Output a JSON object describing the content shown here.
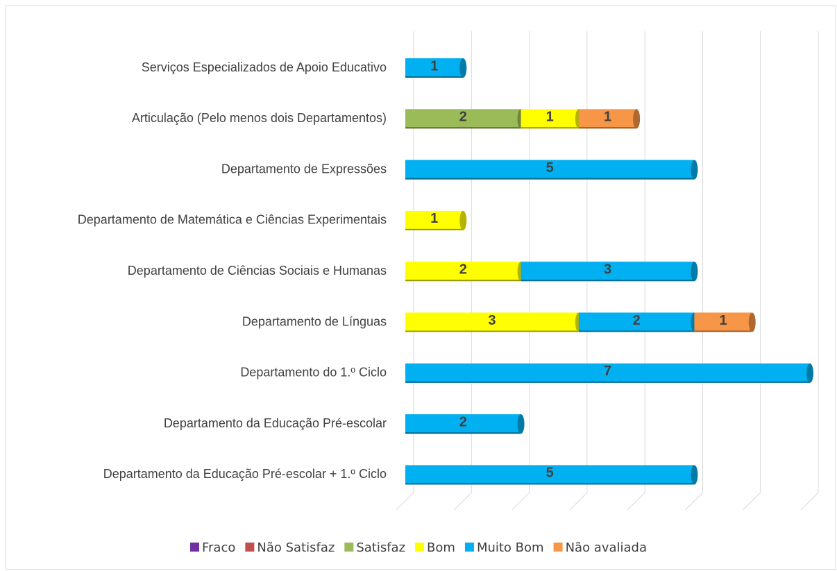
{
  "chart_data": {
    "type": "stacked-horizontal-bar",
    "categories": [
      "Serviços Especializados de Apoio Educativo",
      "Articulação (Pelo menos dois Departamentos)",
      "Departamento de Expressões",
      "Departamento de Matemática e Ciências Experimentais",
      "Departamento de Ciências Sociais e Humanas ",
      "Departamento de Línguas",
      "Departamento do 1.º Ciclo ",
      "Departamento da Educação Pré-escolar",
      "Departamento da Educação Pré-escolar + 1.º Ciclo"
    ],
    "series": [
      {
        "name": "Fraco",
        "color": "#7030a0",
        "values": [
          null,
          null,
          null,
          null,
          null,
          null,
          null,
          null,
          null
        ]
      },
      {
        "name": "Não Satisfaz",
        "color": "#c0504d",
        "values": [
          null,
          null,
          null,
          null,
          null,
          null,
          null,
          null,
          null
        ]
      },
      {
        "name": "Satisfaz",
        "color": "#9bbb59",
        "values": [
          null,
          2,
          null,
          null,
          null,
          null,
          null,
          null,
          null
        ]
      },
      {
        "name": "Bom",
        "color": "#ffff00",
        "values": [
          null,
          1,
          null,
          1,
          2,
          3,
          null,
          null,
          null
        ]
      },
      {
        "name": "Muito Bom",
        "color": "#00b0f0",
        "values": [
          1,
          null,
          5,
          null,
          3,
          2,
          7,
          2,
          5
        ]
      },
      {
        "name": "Não avaliada",
        "color": "#f79646",
        "values": [
          null,
          1,
          null,
          null,
          null,
          1,
          null,
          null,
          null
        ]
      }
    ],
    "xlim": [
      0,
      7
    ],
    "xticks": [
      0,
      1,
      2,
      3,
      4,
      5,
      6,
      7
    ],
    "grid": true,
    "legend": "bottom"
  }
}
